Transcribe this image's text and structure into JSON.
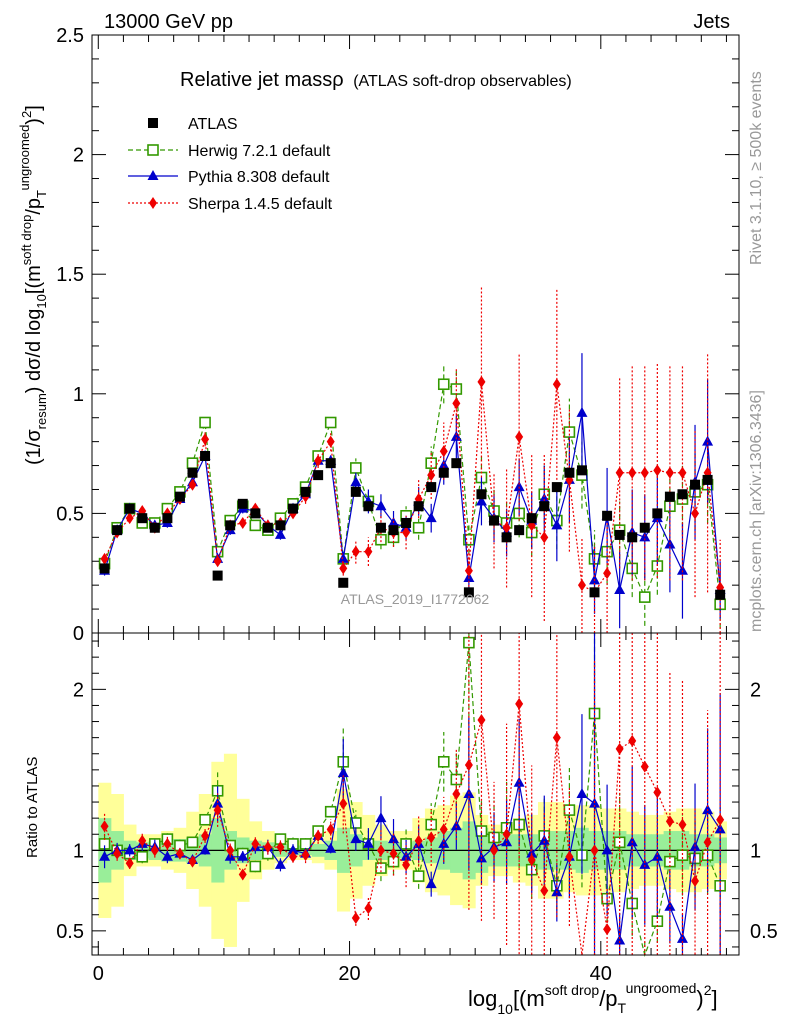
{
  "header": {
    "left": "13000 GeV pp",
    "right": "Jets"
  },
  "side_labels": {
    "rivet": "Rivet 3.1.10, ≥ 500k events",
    "mcplots": "mcplots.cern.ch [arXiv:1306.3436]"
  },
  "watermark": "ATLAS_2019_I1772062",
  "chart_data": [
    {
      "type": "scatter",
      "title": "Relative jet massρ",
      "subtitle": "(ATLAS soft-drop observables)",
      "ylabel": "(1/σresum) dσ/d log10[(msoft drop/pTungroomed)2]",
      "xlabel": "log10[(msoft drop/pTungroomed)2]",
      "xlim": [
        -0.5,
        51
      ],
      "ylim": [
        0,
        2.5
      ],
      "yticks": [
        "0",
        "0.5",
        "1",
        "1.5",
        "2",
        "2.5"
      ],
      "xticks": [
        "0",
        "20",
        "40"
      ],
      "legend": [
        "ATLAS",
        "Herwig 7.2.1 default",
        "Pythia 8.308 default",
        "Sherpa 1.4.5 default"
      ],
      "legend_position": "top-left",
      "series": [
        {
          "name": "ATLAS",
          "color": "#000000",
          "marker": "square",
          "x": [
            0.5,
            1.5,
            2.5,
            3.5,
            4.5,
            5.5,
            6.5,
            7.5,
            8.5,
            9.5,
            10.5,
            11.5,
            12.5,
            13.5,
            14.5,
            15.5,
            16.5,
            17.5,
            18.5,
            19.5,
            20.5,
            21.5,
            22.5,
            23.5,
            24.5,
            25.5,
            26.5,
            27.5,
            28.5,
            29.5,
            30.5,
            31.5,
            32.5,
            33.5,
            34.5,
            35.5,
            36.5,
            37.5,
            38.5,
            39.5,
            40.5,
            41.5,
            42.5,
            43.5,
            44.5,
            45.5,
            46.5,
            47.5,
            48.5,
            49.5
          ],
          "y": [
            0.27,
            0.43,
            0.52,
            0.48,
            0.44,
            0.48,
            0.57,
            0.67,
            0.74,
            0.24,
            0.45,
            0.54,
            0.5,
            0.44,
            0.45,
            0.52,
            0.59,
            0.66,
            0.71,
            0.21,
            0.59,
            0.53,
            0.44,
            0.43,
            0.46,
            0.53,
            0.61,
            0.67,
            0.71,
            0.17,
            0.58,
            0.47,
            0.4,
            0.43,
            0.48,
            0.53,
            0.61,
            0.67,
            0.68,
            0.17,
            0.49,
            0.41,
            0.4,
            0.44,
            0.5,
            0.57,
            0.58,
            0.62,
            0.64,
            0.16
          ],
          "err": [
            0.01,
            0.01,
            0.01,
            0.01,
            0.01,
            0.01,
            0.01,
            0.01,
            0.01,
            0.01,
            0.01,
            0.01,
            0.01,
            0.01,
            0.01,
            0.01,
            0.01,
            0.01,
            0.01,
            0.01,
            0.01,
            0.01,
            0.01,
            0.01,
            0.01,
            0.01,
            0.01,
            0.01,
            0.01,
            0.01,
            0.01,
            0.01,
            0.01,
            0.01,
            0.01,
            0.01,
            0.01,
            0.01,
            0.01,
            0.01,
            0.01,
            0.01,
            0.01,
            0.01,
            0.01,
            0.01,
            0.01,
            0.01,
            0.01,
            0.01
          ]
        },
        {
          "name": "Herwig 7.2.1 default",
          "color": "#339900",
          "marker": "open-square",
          "dash": "5,3",
          "x": [
            0.5,
            1.5,
            2.5,
            3.5,
            4.5,
            5.5,
            6.5,
            7.5,
            8.5,
            9.5,
            10.5,
            11.5,
            12.5,
            13.5,
            14.5,
            15.5,
            16.5,
            17.5,
            18.5,
            19.5,
            20.5,
            21.5,
            22.5,
            23.5,
            24.5,
            25.5,
            26.5,
            27.5,
            28.5,
            29.5,
            30.5,
            31.5,
            32.5,
            33.5,
            34.5,
            35.5,
            36.5,
            37.5,
            38.5,
            39.5,
            40.5,
            41.5,
            42.5,
            43.5,
            44.5,
            45.5,
            46.5,
            47.5,
            48.5,
            49.5
          ],
          "y": [
            0.29,
            0.44,
            0.52,
            0.46,
            0.46,
            0.52,
            0.59,
            0.71,
            0.88,
            0.34,
            0.47,
            0.53,
            0.45,
            0.43,
            0.48,
            0.54,
            0.61,
            0.74,
            0.88,
            0.31,
            0.69,
            0.55,
            0.39,
            0.4,
            0.49,
            0.44,
            0.71,
            1.04,
            1.02,
            0.39,
            0.65,
            0.51,
            0.46,
            0.5,
            0.42,
            0.58,
            0.47,
            0.84,
            0.66,
            0.31,
            0.34,
            0.43,
            0.27,
            0.15,
            0.28,
            0.53,
            0.56,
            0.59,
            0.62,
            0.12
          ],
          "err": [
            0.02,
            0.02,
            0.02,
            0.02,
            0.02,
            0.02,
            0.02,
            0.02,
            0.02,
            0.02,
            0.02,
            0.02,
            0.02,
            0.02,
            0.02,
            0.02,
            0.02,
            0.02,
            0.02,
            0.03,
            0.04,
            0.04,
            0.04,
            0.04,
            0.04,
            0.05,
            0.07,
            0.08,
            0.08,
            0.06,
            0.1,
            0.1,
            0.1,
            0.1,
            0.1,
            0.12,
            0.12,
            0.14,
            0.14,
            0.12,
            0.14,
            0.12,
            0.12,
            0.12,
            0.12,
            0.14,
            0.15,
            0.16,
            0.16,
            0.1
          ]
        },
        {
          "name": "Pythia 8.308 default",
          "color": "#0000cc",
          "marker": "triangle",
          "x": [
            0.5,
            1.5,
            2.5,
            3.5,
            4.5,
            5.5,
            6.5,
            7.5,
            8.5,
            9.5,
            10.5,
            11.5,
            12.5,
            13.5,
            14.5,
            15.5,
            16.5,
            17.5,
            18.5,
            19.5,
            20.5,
            21.5,
            22.5,
            23.5,
            24.5,
            25.5,
            26.5,
            27.5,
            28.5,
            29.5,
            30.5,
            31.5,
            32.5,
            33.5,
            34.5,
            35.5,
            36.5,
            37.5,
            38.5,
            39.5,
            40.5,
            41.5,
            42.5,
            43.5,
            44.5,
            45.5,
            46.5,
            47.5,
            48.5,
            49.5
          ],
          "y": [
            0.26,
            0.43,
            0.52,
            0.5,
            0.45,
            0.46,
            0.56,
            0.63,
            0.74,
            0.31,
            0.43,
            0.52,
            0.51,
            0.45,
            0.41,
            0.52,
            0.58,
            0.72,
            0.72,
            0.31,
            0.63,
            0.55,
            0.53,
            0.46,
            0.44,
            0.55,
            0.48,
            0.7,
            0.82,
            0.23,
            0.55,
            0.48,
            0.42,
            0.61,
            0.47,
            0.56,
            0.45,
            0.64,
            0.92,
            0.22,
            0.49,
            0.18,
            0.42,
            0.4,
            0.48,
            0.37,
            0.26,
            0.63,
            0.8,
            0.18
          ],
          "err": [
            0.02,
            0.02,
            0.02,
            0.02,
            0.02,
            0.02,
            0.02,
            0.02,
            0.02,
            0.02,
            0.02,
            0.02,
            0.02,
            0.02,
            0.02,
            0.02,
            0.02,
            0.02,
            0.02,
            0.03,
            0.04,
            0.05,
            0.05,
            0.05,
            0.05,
            0.06,
            0.06,
            0.08,
            0.09,
            0.06,
            0.1,
            0.1,
            0.1,
            0.12,
            0.12,
            0.14,
            0.15,
            0.18,
            0.25,
            0.14,
            0.2,
            0.16,
            0.18,
            0.18,
            0.2,
            0.2,
            0.2,
            0.24,
            0.26,
            0.12
          ]
        },
        {
          "name": "Sherpa 1.4.5 default",
          "color": "#ee0000",
          "marker": "diamond",
          "dash": "2,2",
          "x": [
            0.5,
            1.5,
            2.5,
            3.5,
            4.5,
            5.5,
            6.5,
            7.5,
            8.5,
            9.5,
            10.5,
            11.5,
            12.5,
            13.5,
            14.5,
            15.5,
            16.5,
            17.5,
            18.5,
            19.5,
            20.5,
            21.5,
            22.5,
            23.5,
            24.5,
            25.5,
            26.5,
            27.5,
            28.5,
            29.5,
            30.5,
            31.5,
            32.5,
            33.5,
            34.5,
            35.5,
            36.5,
            37.5,
            38.5,
            39.5,
            40.5,
            41.5,
            42.5,
            43.5,
            44.5,
            45.5,
            46.5,
            47.5,
            48.5,
            49.5
          ],
          "y": [
            0.31,
            0.42,
            0.48,
            0.51,
            0.44,
            0.5,
            0.56,
            0.62,
            0.81,
            0.3,
            0.45,
            0.46,
            0.52,
            0.45,
            0.46,
            0.5,
            0.57,
            0.72,
            0.8,
            0.27,
            0.34,
            0.34,
            0.44,
            0.42,
            0.42,
            0.56,
            0.66,
            0.76,
            0.96,
            0.26,
            1.05,
            0.47,
            0.44,
            0.82,
            0.45,
            0.4,
            1.04,
            0.64,
            0.2,
            0.17,
            0.25,
            0.67,
            0.67,
            0.67,
            0.68,
            0.67,
            0.67,
            0.5,
            0.67,
            0.19
          ],
          "err": [
            0.02,
            0.02,
            0.02,
            0.02,
            0.02,
            0.02,
            0.02,
            0.02,
            0.03,
            0.02,
            0.02,
            0.02,
            0.02,
            0.02,
            0.02,
            0.02,
            0.03,
            0.03,
            0.04,
            0.03,
            0.05,
            0.06,
            0.06,
            0.06,
            0.07,
            0.08,
            0.1,
            0.12,
            0.15,
            0.1,
            0.4,
            0.2,
            0.25,
            0.35,
            0.3,
            0.35,
            0.4,
            0.3,
            0.2,
            0.2,
            0.25,
            0.4,
            0.45,
            0.45,
            0.45,
            0.45,
            0.45,
            0.35,
            0.5,
            0.2
          ]
        }
      ]
    },
    {
      "type": "scatter",
      "title": "",
      "ylabel": "Ratio to ATLAS",
      "xlabel": "log10[(msoft drop/pTungroomed)2]",
      "ylim": [
        0.35,
        2.35
      ],
      "yticks": [
        "0.5",
        "1",
        "2"
      ],
      "xticks": [
        "0",
        "20",
        "40"
      ],
      "reference_line": 1,
      "bands": {
        "inner_color": "#99ee99",
        "outer_color": "#ffff99",
        "inner": [
          0.2,
          0.12,
          0.06,
          0.05,
          0.06,
          0.07,
          0.07,
          0.08,
          0.1,
          0.2,
          0.12,
          0.08,
          0.06,
          0.05,
          0.04,
          0.03,
          0.03,
          0.04,
          0.06,
          0.14,
          0.1,
          0.06,
          0.06,
          0.05,
          0.05,
          0.06,
          0.08,
          0.12,
          0.14,
          0.18,
          0.14,
          0.1,
          0.1,
          0.1,
          0.1,
          0.12,
          0.12,
          0.12,
          0.14,
          0.12,
          0.12,
          0.12,
          0.1,
          0.1,
          0.1,
          0.12,
          0.12,
          0.1,
          0.1,
          0.08
        ],
        "outer": [
          0.42,
          0.35,
          0.16,
          0.1,
          0.1,
          0.12,
          0.14,
          0.24,
          0.35,
          0.55,
          0.6,
          0.32,
          0.18,
          0.12,
          0.08,
          0.06,
          0.06,
          0.08,
          0.12,
          0.38,
          0.3,
          0.22,
          0.16,
          0.12,
          0.12,
          0.2,
          0.26,
          0.28,
          0.34,
          0.36,
          0.22,
          0.16,
          0.16,
          0.2,
          0.22,
          0.3,
          0.3,
          0.26,
          0.28,
          0.28,
          0.26,
          0.26,
          0.24,
          0.22,
          0.22,
          0.24,
          0.26,
          0.26,
          0.24,
          0.18
        ]
      },
      "series": [
        {
          "name": "Herwig 7.2.1 default",
          "ratio": [
            1.04,
            1.0,
            0.98,
            0.96,
            1.04,
            1.07,
            1.03,
            1.05,
            1.19,
            1.37,
            1.03,
            0.98,
            0.9,
            0.98,
            1.07,
            1.04,
            1.04,
            1.12,
            1.24,
            1.55,
            1.17,
            1.04,
            0.89,
            0.93,
            1.04,
            0.84,
            1.16,
            1.55,
            1.44,
            2.29,
            1.12,
            1.08,
            1.14,
            1.16,
            0.88,
            1.09,
            0.78,
            1.25,
            0.97,
            1.85,
            0.7,
            1.05,
            0.67,
            0.34,
            0.56,
            0.93,
            0.97,
            0.95,
            0.97,
            0.78
          ]
        },
        {
          "name": "Pythia 8.308 default",
          "ratio": [
            0.96,
            1.0,
            1.0,
            1.04,
            1.02,
            0.96,
            0.98,
            0.94,
            1.0,
            1.29,
            0.96,
            0.96,
            1.02,
            1.02,
            0.91,
            1.0,
            0.98,
            1.09,
            1.01,
            1.48,
            1.07,
            1.04,
            1.2,
            1.07,
            0.96,
            1.04,
            0.79,
            1.04,
            1.15,
            1.35,
            0.95,
            1.02,
            1.05,
            1.42,
            0.98,
            1.06,
            0.74,
            0.96,
            1.35,
            1.29,
            1.0,
            0.44,
            1.05,
            0.91,
            0.96,
            0.65,
            0.45,
            1.02,
            1.25,
            1.13
          ]
        },
        {
          "name": "Sherpa 1.4.5 default",
          "ratio": [
            1.15,
            0.98,
            0.92,
            1.06,
            1.0,
            1.04,
            0.98,
            0.93,
            1.09,
            1.25,
            1.0,
            0.85,
            1.04,
            1.02,
            1.02,
            0.96,
            0.97,
            1.09,
            1.13,
            1.29,
            0.58,
            0.64,
            1.0,
            0.98,
            0.91,
            1.06,
            1.08,
            1.13,
            1.35,
            1.53,
            1.81,
            1.0,
            1.1,
            1.91,
            0.94,
            0.75,
            1.7,
            0.96,
            0.29,
            1.0,
            0.51,
            1.63,
            1.68,
            1.52,
            1.36,
            1.18,
            1.16,
            0.81,
            1.05,
            1.19
          ]
        }
      ]
    }
  ]
}
